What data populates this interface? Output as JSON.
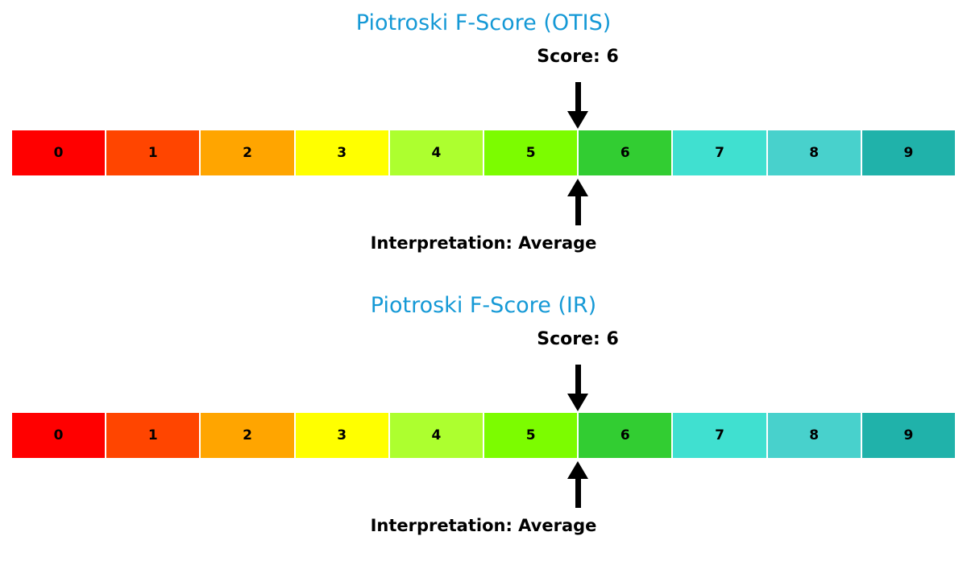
{
  "chart_data": [
    {
      "type": "heatmap",
      "title": "Piotroski F-Score (OTIS)",
      "title_color": "#1599d6",
      "categories": [
        "0",
        "1",
        "2",
        "3",
        "4",
        "5",
        "6",
        "7",
        "8",
        "9"
      ],
      "values": [
        0,
        1,
        2,
        3,
        4,
        5,
        6,
        7,
        8,
        9
      ],
      "cell_colors": [
        "#ff0000",
        "#ff4500",
        "#ffa500",
        "#ffff00",
        "#adff2f",
        "#7cfc00",
        "#32cd32",
        "#40e0d0",
        "#48d1cc",
        "#20b2aa"
      ],
      "score": 6,
      "score_label": "Score: 6",
      "interpretation_label": "Interpretation: Average",
      "marker": "arrow-above-and-below-at-score",
      "xlim": [
        0,
        10
      ],
      "legend": "off",
      "grid": "off"
    },
    {
      "type": "heatmap",
      "title": "Piotroski F-Score (IR)",
      "title_color": "#1599d6",
      "categories": [
        "0",
        "1",
        "2",
        "3",
        "4",
        "5",
        "6",
        "7",
        "8",
        "9"
      ],
      "values": [
        0,
        1,
        2,
        3,
        4,
        5,
        6,
        7,
        8,
        9
      ],
      "cell_colors": [
        "#ff0000",
        "#ff4500",
        "#ffa500",
        "#ffff00",
        "#adff2f",
        "#7cfc00",
        "#32cd32",
        "#40e0d0",
        "#48d1cc",
        "#20b2aa"
      ],
      "score": 6,
      "score_label": "Score: 6",
      "interpretation_label": "Interpretation: Average",
      "marker": "arrow-above-and-below-at-score",
      "xlim": [
        0,
        10
      ],
      "legend": "off",
      "grid": "off"
    }
  ]
}
